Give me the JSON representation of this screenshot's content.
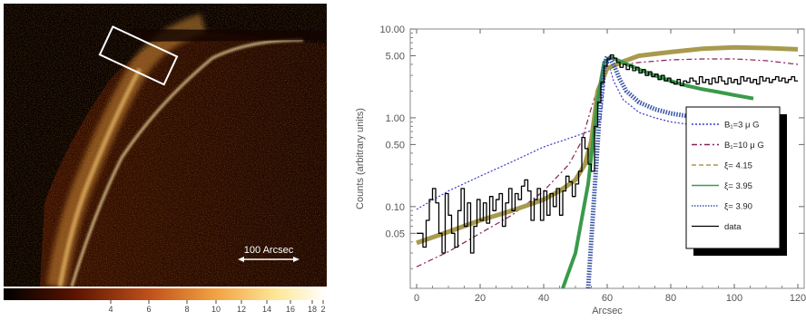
{
  "image_panel": {
    "scale_label": "100 Arcsec",
    "colorbar_ticks": [
      "4",
      "6",
      "8",
      "10",
      "12",
      "14",
      "16",
      "18",
      "2"
    ]
  },
  "chart_data": {
    "type": "line",
    "xlabel": "Arcsec",
    "ylabel": "Counts  (arbitrary units)",
    "xlim": [
      -2,
      122
    ],
    "ylim": [
      0.012,
      10
    ],
    "yscale": "log",
    "xticks": [
      0,
      20,
      40,
      60,
      80,
      100,
      120
    ],
    "yticks": [
      {
        "v": 10,
        "label": "10.00"
      },
      {
        "v": 5,
        "label": "5.00"
      },
      {
        "v": 1,
        "label": "1.00"
      },
      {
        "v": 0.5,
        "label": "0.50"
      },
      {
        "v": 0.1,
        "label": "0.10"
      },
      {
        "v": 0.05,
        "label": "0.05"
      }
    ],
    "legend_position": "right",
    "series": [
      {
        "key": "b3",
        "name": "B₁=3 μ G",
        "color": "#3a3ac8",
        "style": "dotted",
        "x": [
          0,
          10,
          20,
          30,
          40,
          50,
          55,
          58,
          60,
          62,
          65,
          70,
          75,
          80,
          90,
          100,
          105
        ],
        "y": [
          0.093,
          0.15,
          0.22,
          0.32,
          0.47,
          0.62,
          0.72,
          0.95,
          4.7,
          2.6,
          1.6,
          1.15,
          1.0,
          0.9,
          0.8,
          0.75,
          0.72
        ]
      },
      {
        "key": "b10",
        "name": "B₁=10 μ G",
        "color": "#8a1f5a",
        "style": "dashdot",
        "x": [
          0,
          10,
          20,
          30,
          40,
          48,
          52,
          55,
          58,
          60,
          65,
          70,
          80,
          90,
          100,
          110,
          120
        ],
        "y": [
          0.021,
          0.031,
          0.05,
          0.08,
          0.15,
          0.3,
          0.55,
          1.3,
          2.7,
          3.5,
          4.0,
          4.2,
          4.5,
          4.6,
          4.6,
          4.4,
          4.0
        ]
      },
      {
        "key": "xi415",
        "name": "ξ= 4.15",
        "color": "#a89a4e",
        "style": "solid",
        "width": 5,
        "x": [
          0,
          10,
          20,
          30,
          40,
          45,
          50,
          53,
          55,
          57,
          60,
          65,
          70,
          80,
          90,
          100,
          110,
          120
        ],
        "y": [
          0.039,
          0.052,
          0.07,
          0.09,
          0.12,
          0.15,
          0.2,
          0.3,
          0.55,
          2.0,
          3.6,
          4.3,
          5.0,
          5.5,
          6.0,
          6.2,
          6.1,
          5.9
        ]
      },
      {
        "key": "xi395",
        "name": "ξ= 3.95",
        "color": "#3a9a4a",
        "style": "solid",
        "width": 4,
        "x": [
          46,
          50,
          54,
          57,
          59,
          61,
          65,
          70,
          75,
          80,
          85,
          90,
          95,
          100,
          106
        ],
        "y": [
          0.012,
          0.03,
          0.18,
          1.6,
          4.2,
          4.8,
          4.2,
          3.5,
          3.0,
          2.6,
          2.3,
          2.1,
          1.95,
          1.8,
          1.65
        ]
      },
      {
        "key": "xi390",
        "name": "ξ= 3.90",
        "color": "#3a55a8",
        "style": "dense-dotted",
        "width": 5,
        "x": [
          54,
          56,
          57.5,
          58.5,
          59.3,
          60,
          61,
          62.5,
          64,
          66,
          70,
          75,
          80,
          85,
          90,
          95,
          99
        ],
        "y": [
          0.012,
          0.15,
          1.0,
          2.6,
          4.2,
          4.9,
          4.6,
          3.6,
          2.7,
          2.0,
          1.5,
          1.25,
          1.12,
          1.05,
          1.0,
          0.97,
          0.95
        ]
      },
      {
        "key": "data",
        "name": "data",
        "color": "#000000",
        "style": "step",
        "width": 1.3,
        "x": [
          0,
          1,
          2,
          3,
          4,
          5,
          6,
          7,
          8,
          9,
          10,
          11,
          12,
          13,
          14,
          15,
          16,
          17,
          18,
          19,
          20,
          21,
          22,
          23,
          24,
          25,
          26,
          27,
          28,
          29,
          30,
          31,
          32,
          33,
          34,
          35,
          36,
          37,
          38,
          39,
          40,
          41,
          42,
          43,
          44,
          45,
          46,
          47,
          48,
          49,
          50,
          51,
          52,
          53,
          54,
          55,
          56,
          57,
          58,
          59,
          60,
          61,
          62,
          63,
          64,
          65,
          66,
          67,
          68,
          69,
          70,
          71,
          72,
          73,
          74,
          75,
          76,
          77,
          78,
          79,
          80,
          81,
          82,
          83,
          84,
          85,
          86,
          87,
          88,
          89,
          90,
          91,
          92,
          93,
          94,
          95,
          96,
          97,
          98,
          99,
          100,
          101,
          102,
          103,
          104,
          105,
          106,
          107,
          108,
          109,
          110,
          111,
          112,
          113,
          114,
          115,
          116,
          117,
          118,
          119,
          120
        ],
        "y": [
          0.05,
          0.05,
          0.035,
          0.07,
          0.12,
          0.16,
          0.11,
          0.05,
          0.03,
          0.14,
          0.08,
          0.05,
          0.035,
          0.09,
          0.16,
          0.06,
          0.11,
          0.03,
          0.06,
          0.12,
          0.07,
          0.11,
          0.065,
          0.13,
          0.09,
          0.12,
          0.14,
          0.06,
          0.11,
          0.16,
          0.09,
          0.14,
          0.12,
          0.17,
          0.2,
          0.15,
          0.07,
          0.12,
          0.16,
          0.07,
          0.15,
          0.08,
          0.14,
          0.1,
          0.16,
          0.08,
          0.15,
          0.22,
          0.19,
          0.13,
          0.18,
          0.25,
          0.6,
          0.45,
          0.3,
          0.25,
          0.8,
          1.5,
          2.5,
          3.8,
          4.6,
          5.1,
          4.7,
          4.2,
          3.7,
          4.0,
          3.5,
          3.9,
          3.4,
          3.7,
          3.2,
          3.5,
          3.0,
          3.3,
          2.9,
          3.1,
          2.7,
          3.0,
          2.6,
          2.8,
          2.5,
          2.4,
          2.7,
          2.3,
          2.6,
          2.5,
          2.8,
          2.6,
          2.4,
          2.9,
          2.5,
          2.7,
          2.4,
          2.8,
          2.5,
          2.9,
          2.6,
          2.4,
          2.8,
          2.5,
          2.7,
          2.4,
          2.9,
          2.6,
          2.8,
          2.5,
          2.7,
          2.4,
          2.9,
          2.6,
          2.8,
          2.5,
          2.7,
          2.9,
          2.6,
          2.8,
          2.5,
          2.7,
          2.9,
          2.6,
          2.6
        ]
      }
    ]
  }
}
